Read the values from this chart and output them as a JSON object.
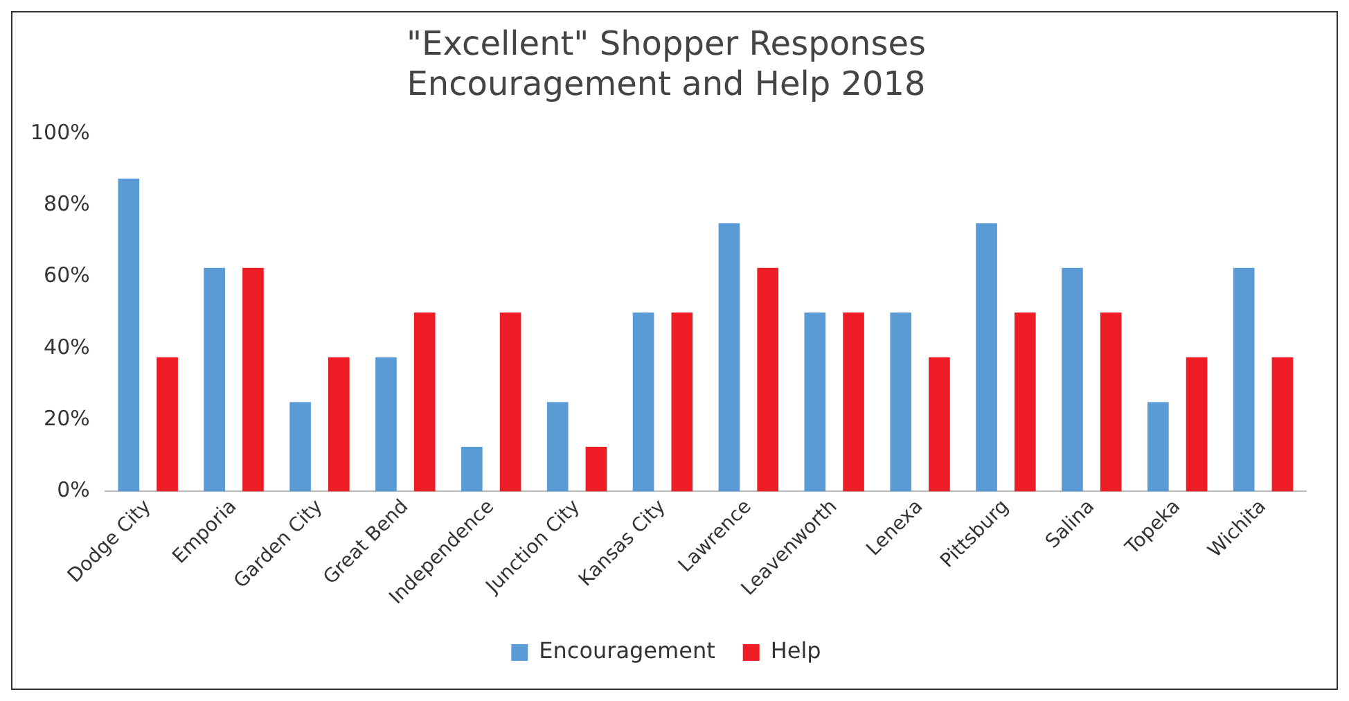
{
  "chart_data": {
    "type": "bar",
    "title": "\"Excellent\" Shopper Responses\nEncouragement and Help 2018",
    "categories": [
      "Dodge City",
      "Emporia",
      "Garden City",
      "Great Bend",
      "Independence",
      "Junction City",
      "Kansas City",
      "Lawrence",
      "Leavenworth",
      "Lenexa",
      "Pittsburg",
      "Salina",
      "Topeka",
      "Wichita"
    ],
    "series": [
      {
        "name": "Encouragement",
        "color": "#5b9bd5",
        "values": [
          87.5,
          62.5,
          25,
          37.5,
          12.5,
          25,
          50,
          75,
          50,
          50,
          75,
          62.5,
          25,
          62.5
        ]
      },
      {
        "name": "Help",
        "color": "#ee1c25",
        "values": [
          37.5,
          62.5,
          37.5,
          50,
          50,
          12.5,
          50,
          62.5,
          50,
          37.5,
          50,
          50,
          37.5,
          37.5
        ]
      }
    ],
    "ylim": [
      0,
      100
    ],
    "yticks": [
      {
        "value": 0,
        "label": "0%"
      },
      {
        "value": 20,
        "label": "20%"
      },
      {
        "value": 40,
        "label": "40%"
      },
      {
        "value": 60,
        "label": "60%"
      },
      {
        "value": 80,
        "label": "80%"
      },
      {
        "value": 100,
        "label": "100%"
      }
    ],
    "grid": false,
    "legend": "bottom"
  }
}
